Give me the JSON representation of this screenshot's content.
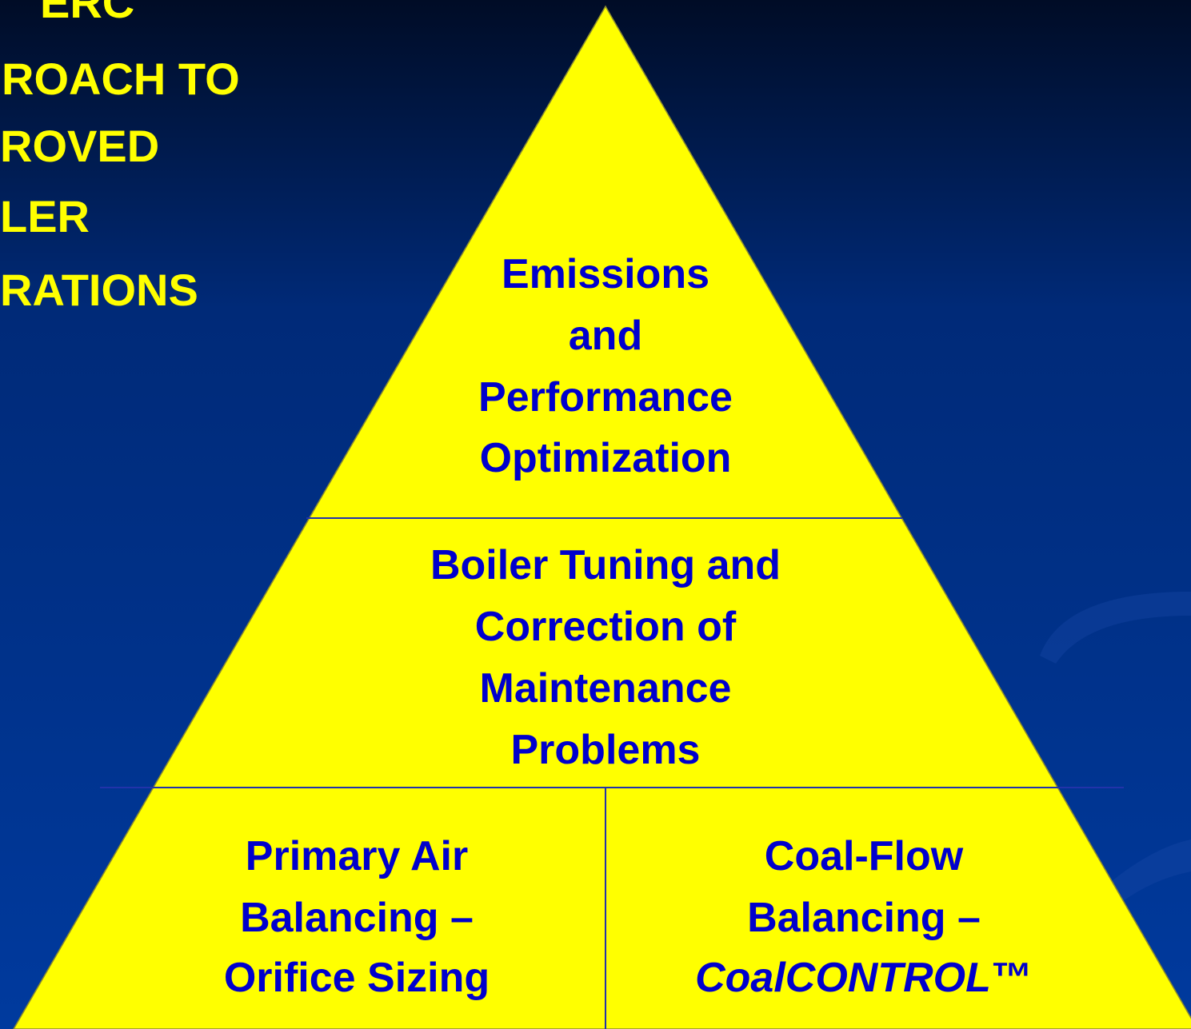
{
  "title": {
    "lines": [
      "ERC",
      "ROACH TO",
      "ROVED",
      "LER",
      "RATIONS"
    ]
  },
  "pyramid": {
    "top": {
      "lines": [
        "Emissions",
        "and",
        "Performance",
        "Optimization"
      ]
    },
    "middle": {
      "lines": [
        "Boiler Tuning and",
        "Correction of",
        "Maintenance",
        "Problems"
      ]
    },
    "bottom_left": {
      "lines": [
        "Primary Air",
        "Balancing –",
        "Orifice Sizing"
      ]
    },
    "bottom_right": {
      "lines": [
        "Coal-Flow",
        "Balancing –"
      ],
      "brand": {
        "name": "CoalCONTROL",
        "mark": "™"
      }
    }
  }
}
